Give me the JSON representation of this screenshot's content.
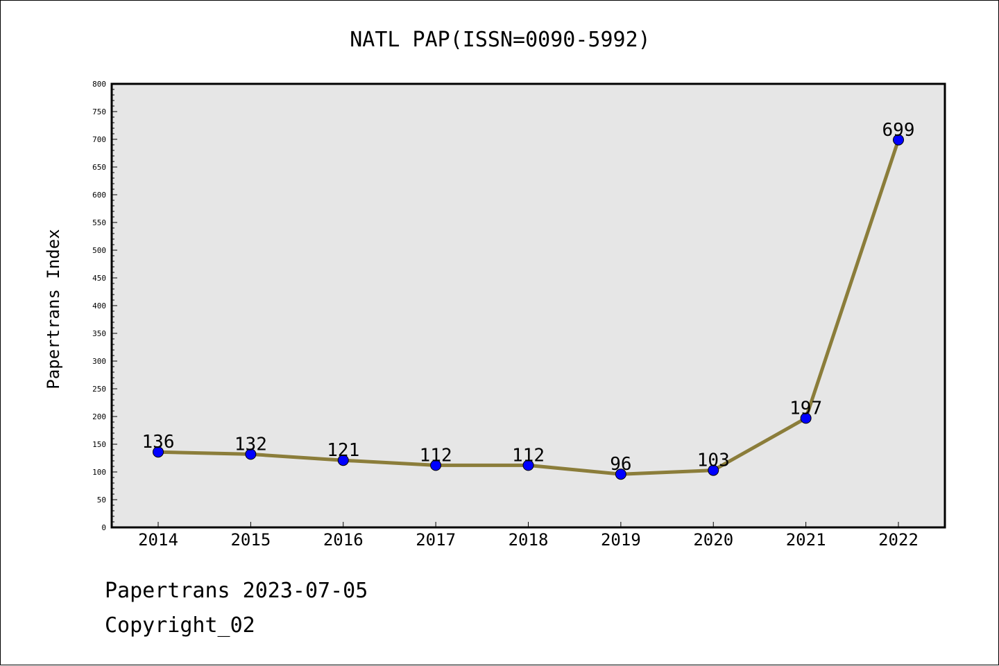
{
  "chart_data": {
    "type": "line",
    "title": "NATL PAP(ISSN=0090-5992)",
    "xlabel": "",
    "ylabel": "Papertrans Index",
    "categories": [
      "2014",
      "2015",
      "2016",
      "2017",
      "2018",
      "2019",
      "2020",
      "2021",
      "2022"
    ],
    "values": [
      136,
      132,
      121,
      112,
      112,
      96,
      103,
      197,
      699
    ],
    "data_labels": [
      "136",
      "132",
      "121",
      "112",
      "112",
      "96",
      "103",
      "197",
      "699"
    ],
    "ylim": [
      0,
      800
    ],
    "ytick_labels": [
      "0",
      "50",
      "100",
      "150",
      "200",
      "250",
      "300",
      "350",
      "400",
      "450",
      "500",
      "550",
      "600",
      "650",
      "700",
      "750",
      "800"
    ],
    "grid": false,
    "legend": "none",
    "colors": {
      "line": "#8B7D3A",
      "marker": "#0000FF",
      "plot_background": "#E6E6E6"
    }
  },
  "footer": {
    "date_line": "Papertrans 2023-07-05",
    "copyright": "Copyright_02"
  }
}
